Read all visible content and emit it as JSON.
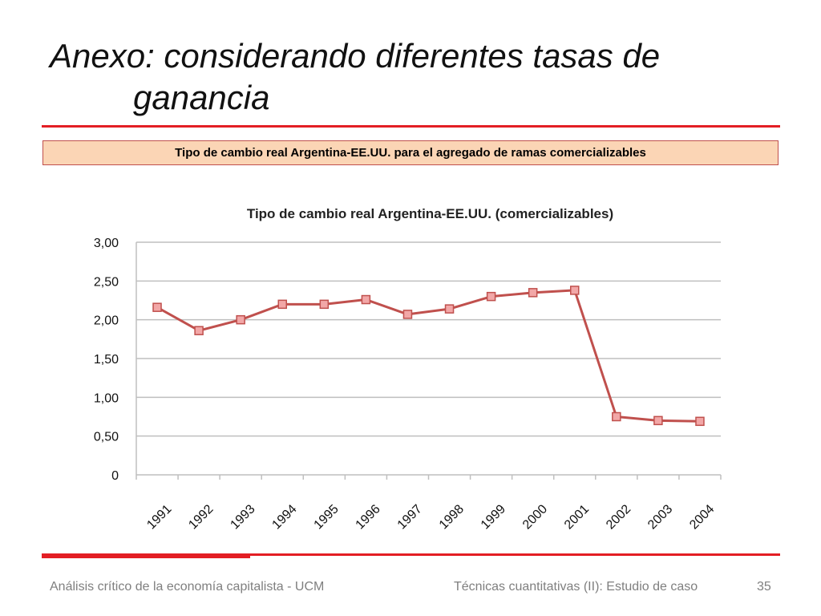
{
  "slide": {
    "title_line1": "Anexo: considerando diferentes tasas de",
    "title_line2": "ganancia",
    "banner": "Tipo de cambio real Argentina-EE.UU. para el agregado de ramas comercializables",
    "footer_left": "Análisis crítico de la economía capitalista - UCM",
    "footer_center": "Técnicas cuantitativas (II): Estudio de caso",
    "page_number": "35"
  },
  "colors": {
    "accent_red": "#e31e24",
    "banner_fill": "#fbd5b5",
    "line": "#c0504d",
    "marker_fill": "#f2a7a7",
    "grid": "#bfbfbf"
  },
  "chart_data": {
    "type": "line",
    "title": "Tipo de cambio real Argentina-EE.UU. (comercializables)",
    "categories": [
      "1991",
      "1992",
      "1993",
      "1994",
      "1995",
      "1996",
      "1997",
      "1998",
      "1999",
      "2000",
      "2001",
      "2002",
      "2003",
      "2004"
    ],
    "series": [
      {
        "values": [
          2.16,
          1.86,
          2.0,
          2.2,
          2.2,
          2.26,
          2.07,
          2.14,
          2.3,
          2.35,
          2.38,
          0.75,
          0.7,
          0.69
        ]
      }
    ],
    "ylim": [
      0,
      3
    ],
    "yticks": [
      "0",
      "0,50",
      "1,00",
      "1,50",
      "2,00",
      "2,50",
      "3,00"
    ],
    "grid": true,
    "legend": "none"
  }
}
